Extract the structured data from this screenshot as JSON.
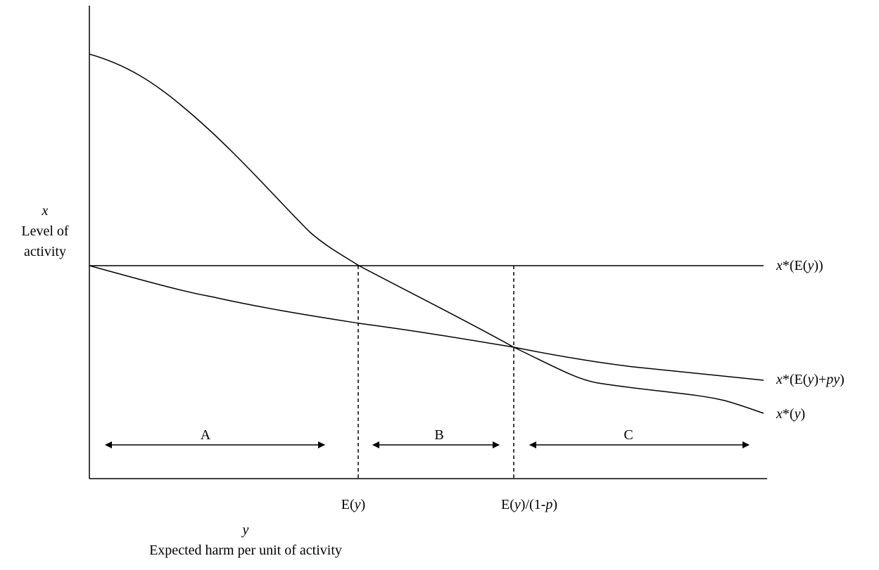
{
  "y_axis": {
    "symbol": "x",
    "label_line1": "Level of",
    "label_line2": "activity"
  },
  "x_axis": {
    "symbol": "y",
    "label": "Expected harm per unit of activity"
  },
  "ticks": {
    "ey": {
      "pre": "E(",
      "var": "y",
      "post": ")"
    },
    "ey_over": {
      "pre": "E(",
      "var": "y",
      "mid": ")/(1-",
      "var2": "p",
      "post": ")"
    }
  },
  "curves": {
    "flat": {
      "v1": "x",
      "t1": "*(E(",
      "v2": "y",
      "t2": "))"
    },
    "mid": {
      "v1": "x",
      "t1": "*(E(",
      "v2": "y",
      "t2": ")+",
      "v3": "py",
      "t3": ")"
    },
    "steep": {
      "v1": "x",
      "t1": "*(",
      "v2": "y",
      "t2": ")"
    }
  },
  "regions": [
    "A",
    "B",
    "C"
  ],
  "colors": {
    "line": "#000000",
    "background": "#ffffff"
  }
}
